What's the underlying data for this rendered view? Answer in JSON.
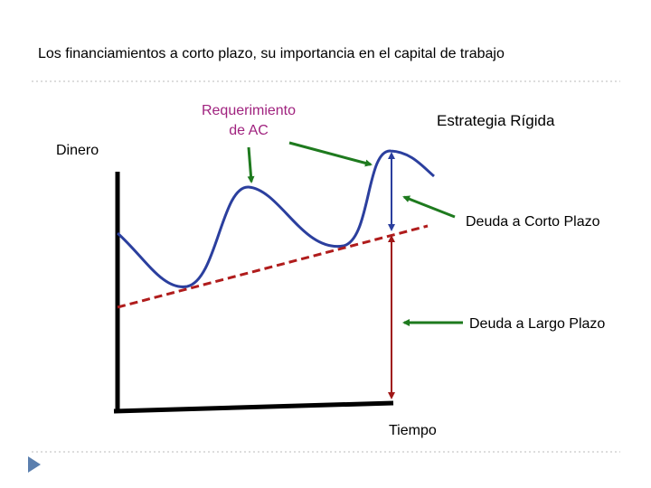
{
  "header": {
    "title": "Los financiamientos a corto plazo, su importancia en el capital de trabajo"
  },
  "diagram": {
    "requirement_label": [
      "Requerimiento",
      "de  AC"
    ],
    "strategy_label": "Estrategia Rígida",
    "y_axis_label": "Dinero",
    "short_term_label": "Deuda a Corto Plazo",
    "long_term_label": "Deuda a Largo Plazo",
    "x_axis_label": "Tiempo"
  }
}
